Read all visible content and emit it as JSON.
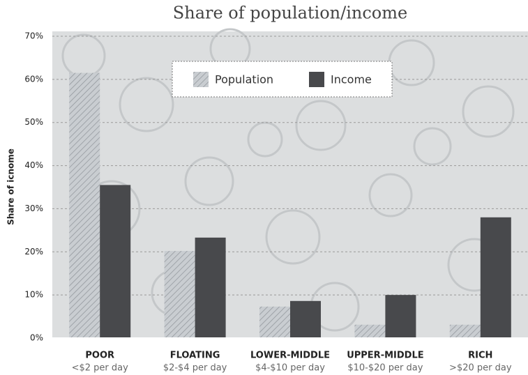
{
  "chart_data": {
    "type": "bar",
    "title": "Share of population/income",
    "y_label": "Share of icnome",
    "categories": [
      "POOR",
      "FLOATING",
      "LOWER-MIDDLE",
      "UPPER-MIDDLE",
      "RICH"
    ],
    "category_notes": [
      "<$2 per day",
      "$2-$4 per day",
      "$4-$10 per day",
      "$10-$20 per day",
      ">$20 per day"
    ],
    "series": [
      {
        "name": "Population",
        "color": "#c9cdd1",
        "hatch": true,
        "values": [
          61.5,
          20.2,
          7.3,
          3.1,
          3.1
        ]
      },
      {
        "name": "Income",
        "color": "#48494c",
        "hatch": false,
        "values": [
          35.5,
          23.3,
          8.6,
          10.0,
          28.0
        ]
      }
    ],
    "ylim": [
      0,
      70
    ],
    "yticks": [
      {
        "value": 0,
        "label": "0%"
      },
      {
        "value": 10,
        "label": "10%"
      },
      {
        "value": 20,
        "label": "20%"
      },
      {
        "value": 30,
        "label": "30%"
      },
      {
        "value": 40,
        "label": "40%"
      },
      {
        "value": 50,
        "label": "50%"
      },
      {
        "value": 60,
        "label": "60%"
      },
      {
        "value": 70,
        "label": "70%"
      }
    ],
    "grid": true
  }
}
